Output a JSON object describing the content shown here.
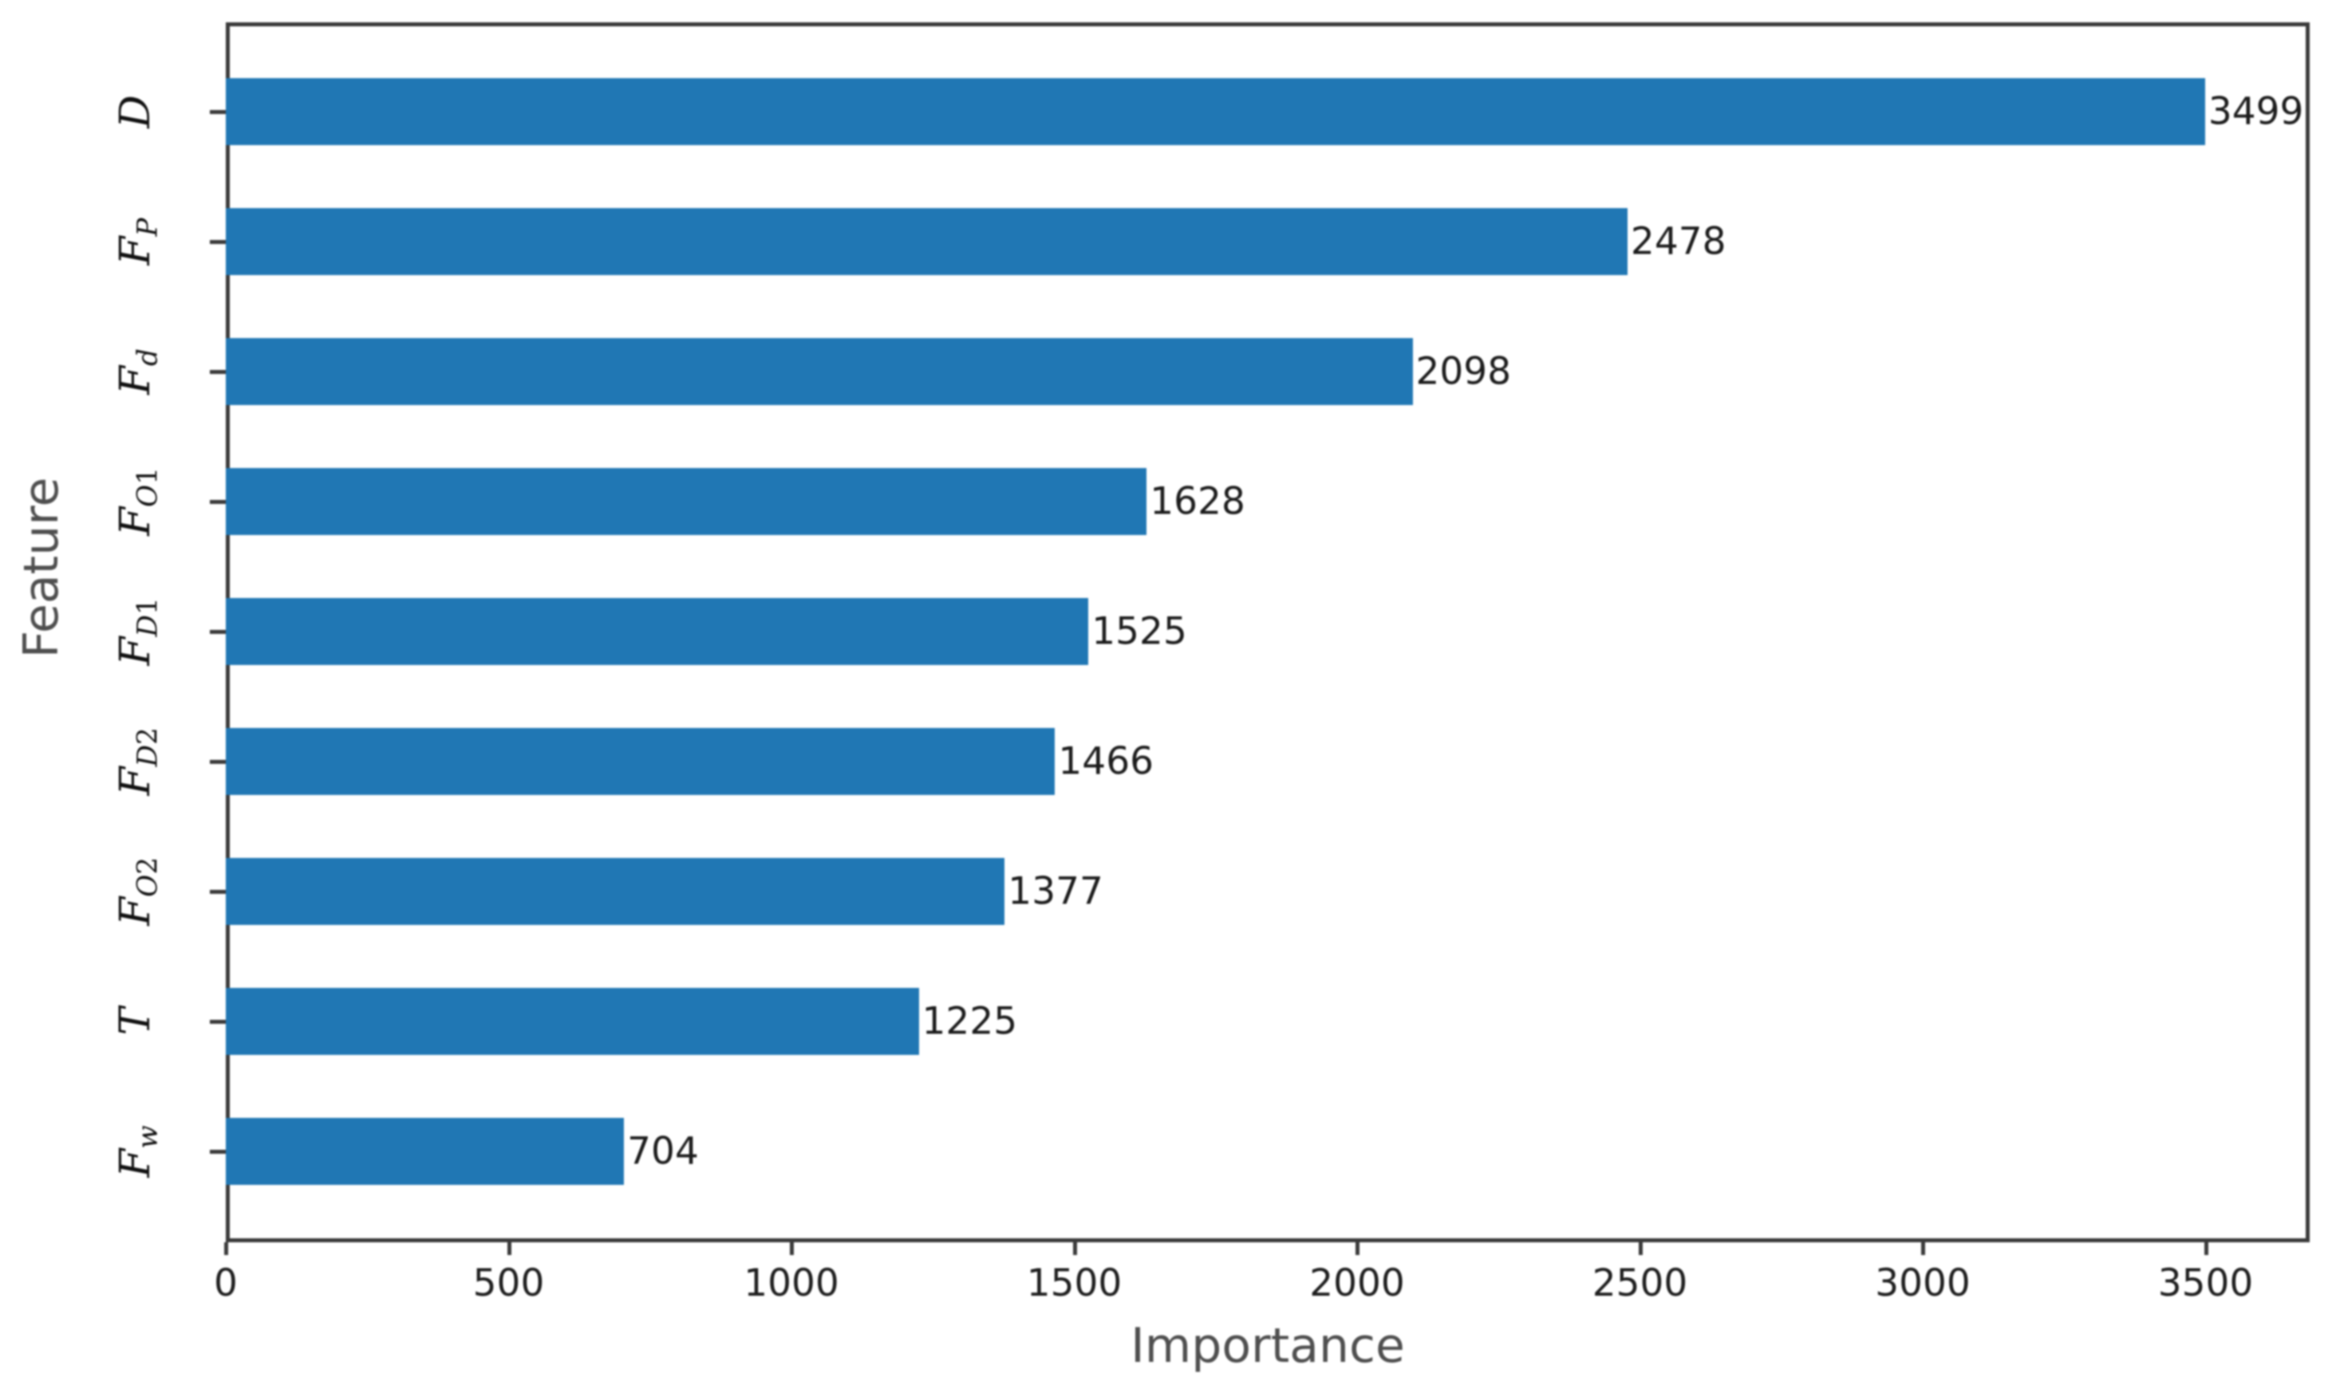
{
  "chart_data": {
    "type": "bar",
    "orientation": "horizontal",
    "xlabel": "Importance",
    "ylabel": "Feature",
    "categories": [
      "D",
      "F_P",
      "F_d",
      "F_O1",
      "F_D1",
      "F_D2",
      "F_O2",
      "T",
      "F_w"
    ],
    "values": [
      3499,
      2478,
      2098,
      1628,
      1525,
      1466,
      1377,
      1225,
      704
    ],
    "bar_labels": [
      "3499",
      "2478",
      "2098",
      "1628",
      "1525",
      "1466",
      "1377",
      "1225",
      "704"
    ],
    "x_ticks": [
      "0",
      "500",
      "1000",
      "1500",
      "2000",
      "2500",
      "3000",
      "3500"
    ],
    "x_tick_values": [
      0,
      500,
      1000,
      1500,
      2000,
      2500,
      3000,
      3500
    ],
    "xlim": [
      0,
      3684
    ],
    "grid": "off",
    "legend": "none",
    "bar_color": "#2077b4",
    "spine_color": "#3b3b3b",
    "tick_label_color": "#1e1e1e",
    "axis_label_color": "#4f4f4f",
    "category_label_rotation_deg": 90
  }
}
